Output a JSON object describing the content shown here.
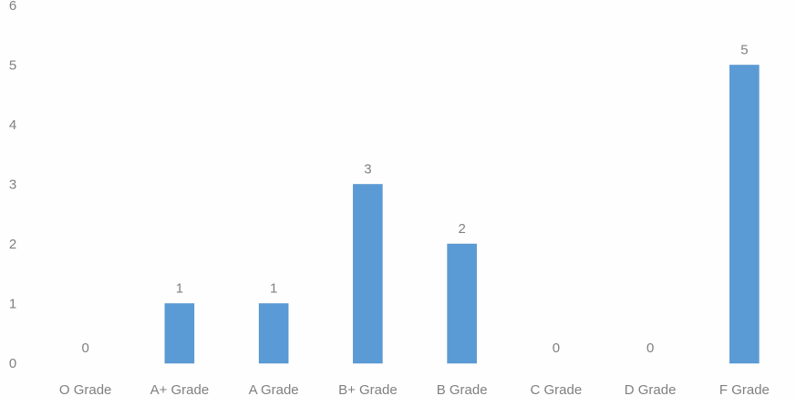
{
  "chart_data": {
    "type": "bar",
    "categories": [
      "O Grade",
      "A+ Grade",
      "A Grade",
      "B+ Grade",
      "B Grade",
      "C Grade",
      "D Grade",
      "F Grade"
    ],
    "values": [
      0,
      1,
      1,
      3,
      2,
      0,
      0,
      5
    ],
    "data_labels": [
      "0",
      "1",
      "1",
      "3",
      "2",
      "0",
      "0",
      "5"
    ],
    "yticks": [
      "0",
      "1",
      "2",
      "3",
      "4",
      "5",
      "6"
    ],
    "ylim": [
      0,
      6
    ],
    "grid": false,
    "legend": "none"
  },
  "colors": {
    "bar": "#5b9bd5",
    "bar_edge": "#4a8ac6",
    "text": "#808080",
    "background": "#fefefe"
  }
}
